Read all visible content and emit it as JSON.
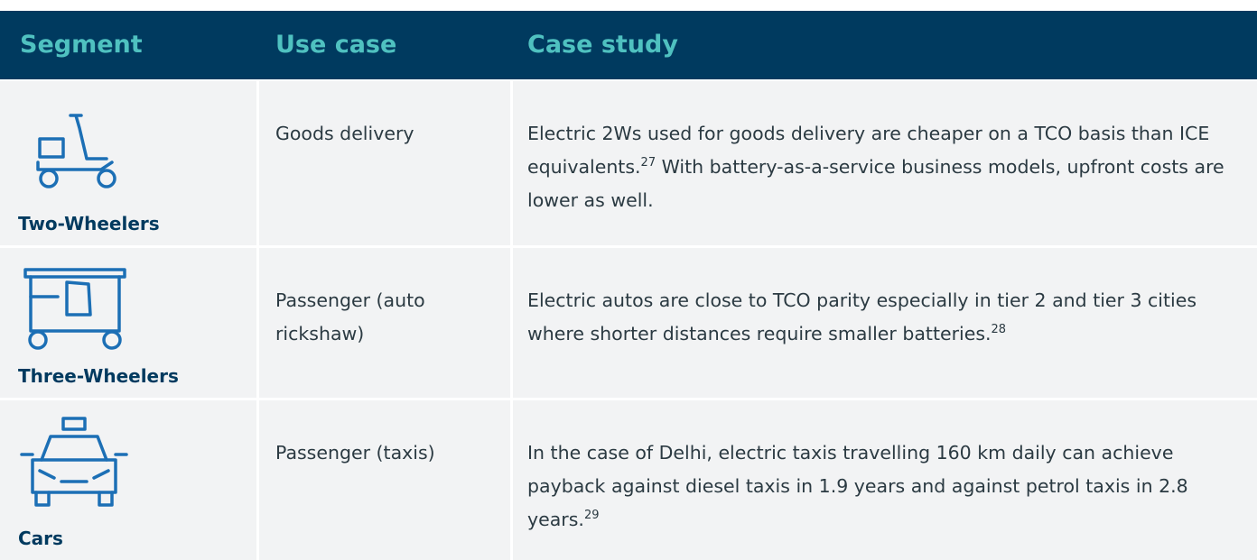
{
  "table": {
    "headers": [
      "Segment",
      "Use case",
      "Case study"
    ],
    "rows": [
      {
        "segment": "Two-Wheelers",
        "use_case": "Goods delivery",
        "case_study": {
          "before": "Electric 2Ws used for goods delivery are cheaper on a TCO basis than ICE equivalents.",
          "footnote": "27",
          "after": " With battery-as-a-service business models, upfront costs are lower as well."
        }
      },
      {
        "segment": "Three-Wheelers",
        "use_case": "Passenger (auto rickshaw)",
        "case_study": {
          "before": "Electric autos are close to TCO parity especially in tier 2 and tier 3 cities where shorter distances require smaller batteries.",
          "footnote": "28",
          "after": ""
        }
      },
      {
        "segment": "Cars",
        "use_case": "Passenger (taxis)",
        "case_study": {
          "before": "In the case of Delhi, electric taxis travelling 160 km daily can achieve payback against diesel taxis in 1.9 years and against petrol taxis in 2.8 years.",
          "footnote": "29",
          "after": ""
        }
      }
    ]
  }
}
